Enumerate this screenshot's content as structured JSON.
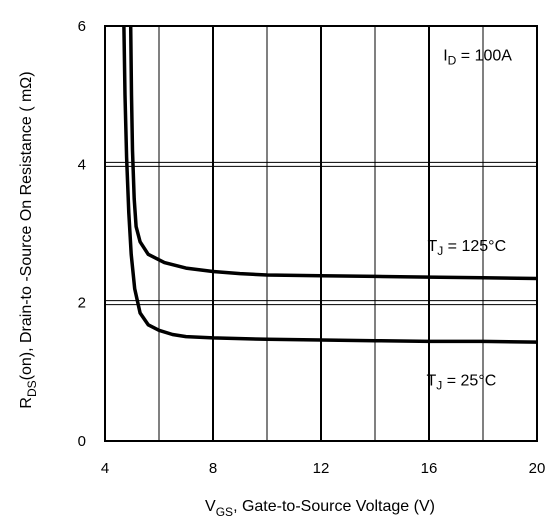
{
  "chart_data": {
    "type": "line",
    "title": "",
    "xlabel": {
      "main": "V",
      "sub": "GS",
      "rest": ", Gate-to-Source Voltage (V)"
    },
    "ylabel": {
      "main": "R",
      "sub": "DS",
      "rest": "(on),  Drain-to -Source On Resistance ( mΩ)"
    },
    "xlim": [
      4,
      20
    ],
    "ylim": [
      0,
      6
    ],
    "xticks": [
      4,
      8,
      12,
      16,
      20
    ],
    "yticks": [
      0,
      2,
      4,
      6
    ],
    "x_minor_step": 2,
    "grid": true,
    "annotations": [
      {
        "main": "I",
        "sub": "D",
        "rest": " = 100A",
        "at": [
          17.8,
          5.5
        ]
      },
      {
        "main": "T",
        "sub": "J",
        "rest": " = 125°C",
        "at": [
          17.4,
          2.75
        ]
      },
      {
        "main": "T",
        "sub": "J",
        "rest": " = 25°C",
        "at": [
          17.2,
          0.8
        ]
      }
    ],
    "series": [
      {
        "id": "tj125",
        "points": [
          [
            4.95,
            6.0
          ],
          [
            4.98,
            5.0
          ],
          [
            5.02,
            4.2
          ],
          [
            5.08,
            3.5
          ],
          [
            5.15,
            3.1
          ],
          [
            5.3,
            2.88
          ],
          [
            5.6,
            2.7
          ],
          [
            6.2,
            2.58
          ],
          [
            7.0,
            2.5
          ],
          [
            8.0,
            2.45
          ],
          [
            9.0,
            2.42
          ],
          [
            10.0,
            2.4
          ],
          [
            12.0,
            2.39
          ],
          [
            14.0,
            2.38
          ],
          [
            16.0,
            2.37
          ],
          [
            18.0,
            2.36
          ],
          [
            20.0,
            2.35
          ]
        ]
      },
      {
        "id": "tj25",
        "points": [
          [
            4.7,
            6.0
          ],
          [
            4.74,
            5.0
          ],
          [
            4.8,
            4.1
          ],
          [
            4.88,
            3.3
          ],
          [
            4.97,
            2.7
          ],
          [
            5.1,
            2.2
          ],
          [
            5.3,
            1.85
          ],
          [
            5.6,
            1.68
          ],
          [
            6.0,
            1.6
          ],
          [
            6.5,
            1.54
          ],
          [
            7.0,
            1.51
          ],
          [
            8.0,
            1.49
          ],
          [
            10.0,
            1.47
          ],
          [
            12.0,
            1.46
          ],
          [
            14.0,
            1.45
          ],
          [
            16.0,
            1.44
          ],
          [
            18.0,
            1.44
          ],
          [
            20.0,
            1.43
          ]
        ]
      }
    ]
  }
}
